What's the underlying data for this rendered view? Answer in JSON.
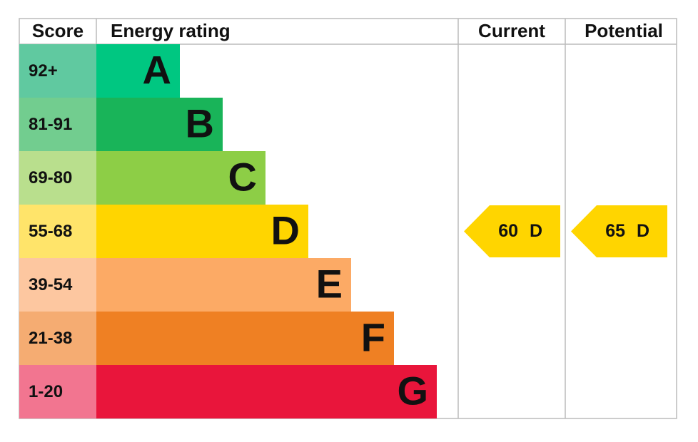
{
  "header": {
    "score": "Score",
    "energy_rating": "Energy rating",
    "current": "Current",
    "potential": "Potential"
  },
  "bands": [
    {
      "range": "92+",
      "letter": "A",
      "color": "#00c781",
      "tint": "#60c9a0"
    },
    {
      "range": "81-91",
      "letter": "B",
      "color": "#19b459",
      "tint": "#72cd8f"
    },
    {
      "range": "69-80",
      "letter": "C",
      "color": "#8dce46",
      "tint": "#b9df8d"
    },
    {
      "range": "55-68",
      "letter": "D",
      "color": "#ffd500",
      "tint": "#ffe46a"
    },
    {
      "range": "39-54",
      "letter": "E",
      "color": "#fcaa65",
      "tint": "#fdc7a0"
    },
    {
      "range": "21-38",
      "letter": "F",
      "color": "#ef8023",
      "tint": "#f5ac72"
    },
    {
      "range": "1-20",
      "letter": "G",
      "color": "#e9153b",
      "tint": "#f27590"
    }
  ],
  "current": {
    "score": 60,
    "rating": "D"
  },
  "potential": {
    "score": 65,
    "rating": "D"
  }
}
